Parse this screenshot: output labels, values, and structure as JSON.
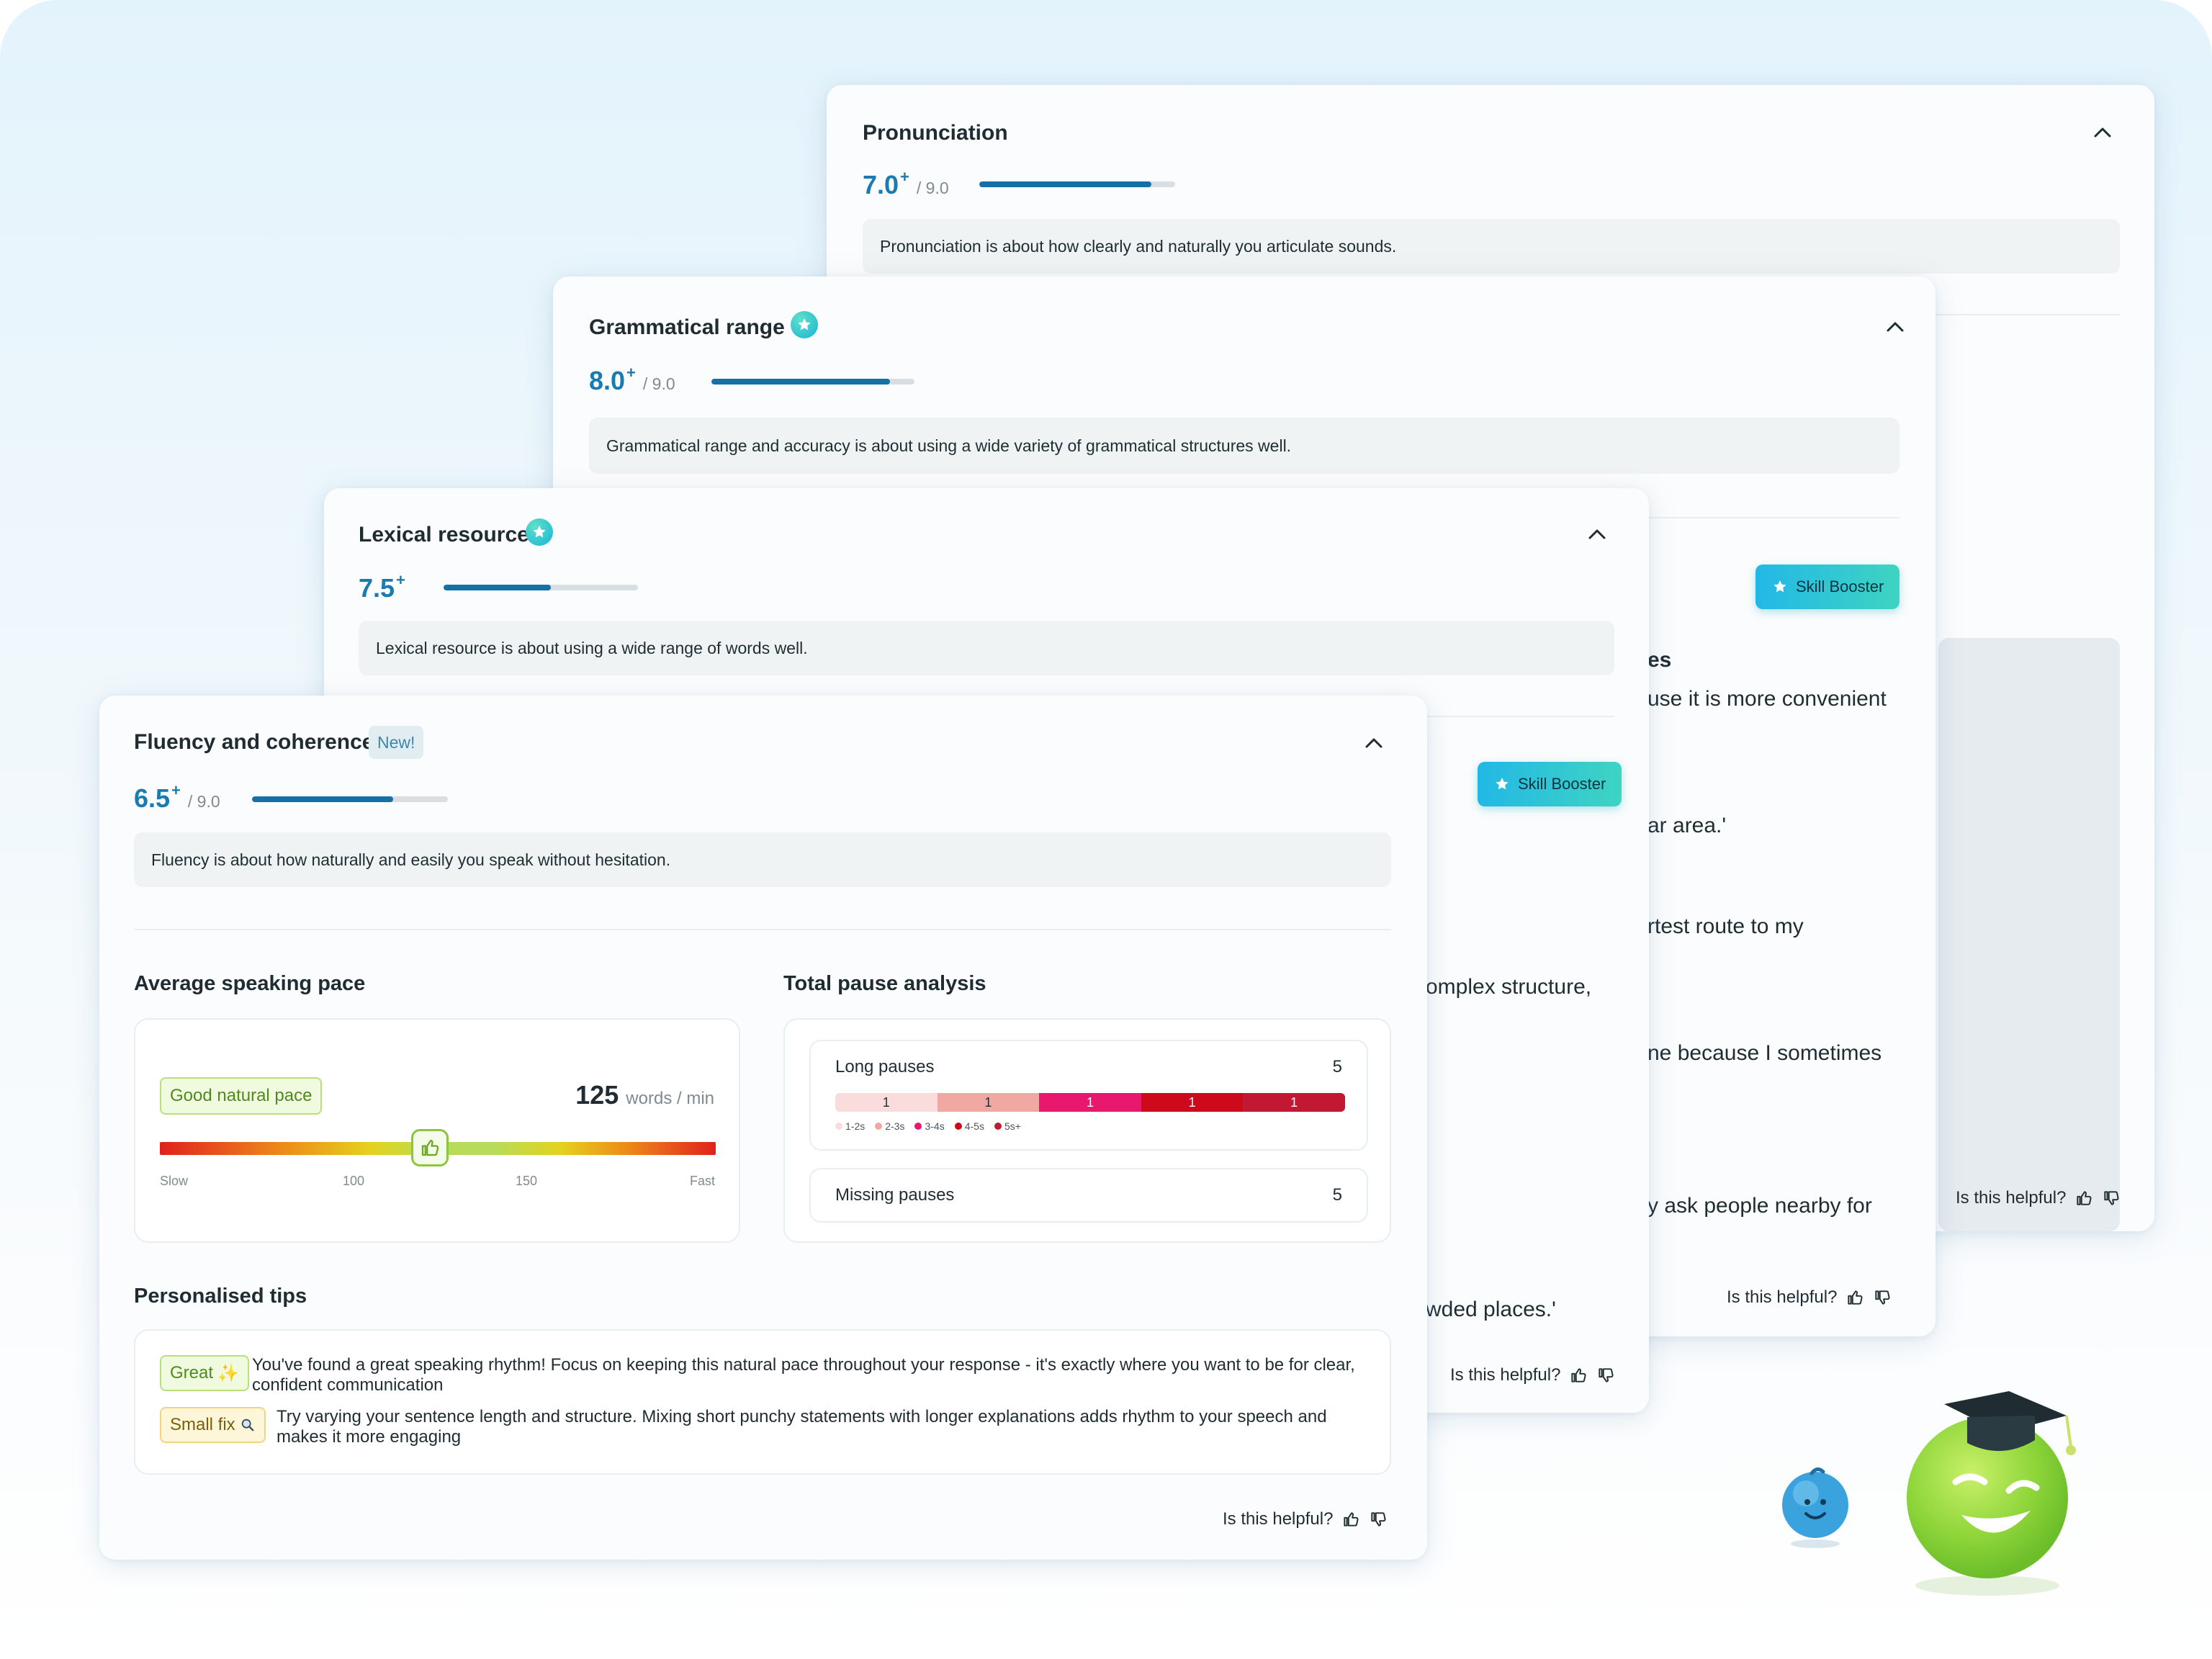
{
  "pronunciation": {
    "title": "Pronunciation",
    "score": "7.0",
    "plus": "+",
    "max": "/ 9.0",
    "progress": 0.88,
    "description": "Pronunciation is about how clearly and naturally you articulate sounds.",
    "helpful": "Is this helpful?"
  },
  "grammar": {
    "title": "Grammatical range",
    "score": "8.0",
    "plus": "+",
    "max": "/ 9.0",
    "progress": 0.88,
    "description": "Grammatical range and accuracy is about using a wide variety of grammatical structures well.",
    "booster": "Skill Booster",
    "fragments": [
      "es",
      "use it is more convenient",
      "ar area.'",
      "rtest route to my",
      "ne because I sometimes",
      "y ask people nearby for"
    ],
    "helpful": "Is this helpful?"
  },
  "lexical": {
    "title": "Lexical resource",
    "score": "7.5",
    "plus": "+",
    "progress": 0.55,
    "description": "Lexical resource is about using a wide range of words well.",
    "booster": "Skill Booster",
    "fragments": [
      "omplex structure,",
      "wded places.'"
    ],
    "helpful": "Is this helpful?"
  },
  "fluency": {
    "title": "Fluency and coherence",
    "badge": "New!",
    "score": "6.5",
    "plus": "+",
    "max": "/ 9.0",
    "progress": 0.72,
    "description": "Fluency is about how naturally and easily you speak without hesitation.",
    "pace": {
      "title": "Average speaking pace",
      "label": "Good natural pace",
      "value": "125",
      "unit": "words / min",
      "position": 0.486,
      "ticks": [
        "Slow",
        "100",
        "150",
        "Fast"
      ]
    },
    "pauses": {
      "title": "Total pause analysis",
      "long_label": "Long pauses",
      "long_count": "5",
      "segments": [
        "1",
        "1",
        "1",
        "1",
        "1"
      ],
      "legend": [
        "1-2s",
        "2-3s",
        "3-4s",
        "4-5s",
        "5s+"
      ],
      "colors": [
        "#fadcdc",
        "#efa9a2",
        "#e8186e",
        "#cc0a1c",
        "#c21834"
      ],
      "missing_label": "Missing pauses",
      "missing_count": "5"
    },
    "tips": {
      "title": "Personalised tips",
      "items": [
        {
          "tag": "Great",
          "tag_icon": "sparkle-icon",
          "text1": "You've found a great speaking rhythm! Focus on keeping this natural pace throughout your response - it's exactly where you want to be for clear,",
          "text2": "confident communication"
        },
        {
          "tag": "Small fix",
          "tag_icon": "magnifier-icon",
          "text1": "Try varying your sentence length and structure. Mixing short punchy statements with longer explanations adds rhythm to your speech and",
          "text2": "makes it more engaging"
        }
      ]
    },
    "helpful": "Is this helpful?"
  }
}
